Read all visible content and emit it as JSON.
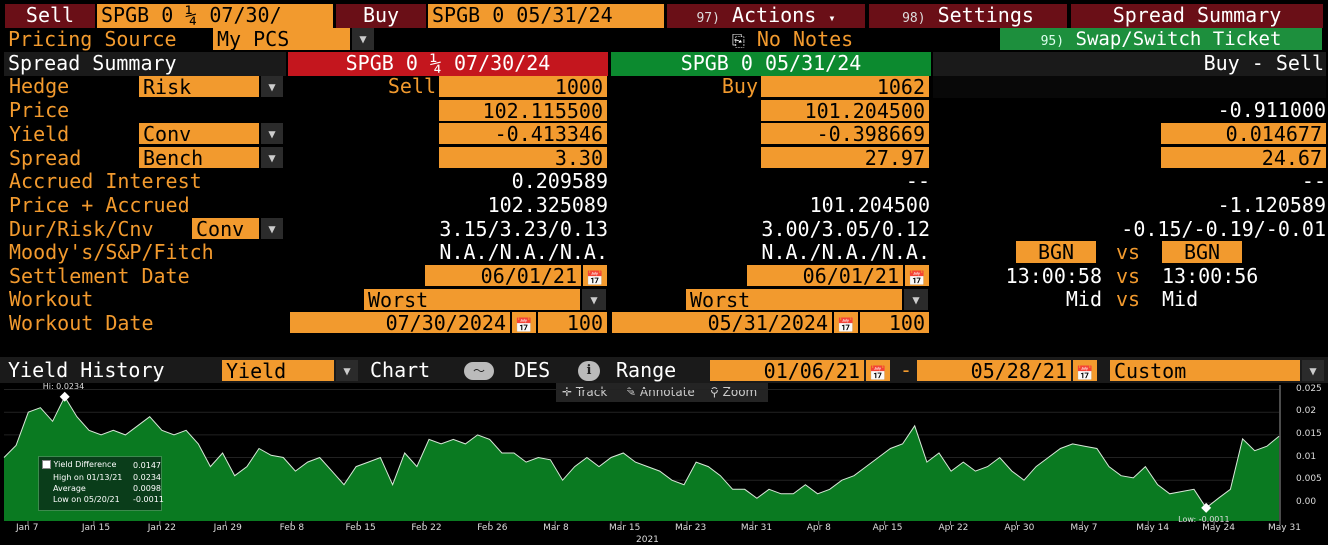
{
  "toolbar": {
    "sell_label": "Sell",
    "sell_security": "SPGB 0 ¼ 07/30/",
    "buy_label": "Buy",
    "buy_security": "SPGB 0 05/31/24",
    "actions_num": "97)",
    "actions_label": "Actions",
    "settings_num": "98)",
    "settings_label": "Settings",
    "spread_summary_label": "Spread Summary"
  },
  "row2": {
    "pricing_source_label": "Pricing Source",
    "pricing_source_value": "My PCS",
    "no_notes_label": "No Notes",
    "swap_num": "95)",
    "swap_label": "Swap/Switch Ticket"
  },
  "header": {
    "title": "Spread Summary",
    "sell_security": "SPGB 0 ¼ 07/30/24",
    "buy_security": "SPGB 0 05/31/24",
    "diff": "Buy - Sell"
  },
  "labels": {
    "hedge": "Hedge",
    "hedge_value": "Risk",
    "price": "Price",
    "yield": "Yield",
    "yield_value": "Conv",
    "spread": "Spread",
    "spread_value": "Bench",
    "accrued": "Accrued Interest",
    "price_accrued": "Price + Accrued",
    "dur": "Dur/Risk/Cnv",
    "dur_value": "Conv",
    "ratings": "Moody's/S&P/Fitch",
    "settlement": "Settlement Date",
    "workout": "Workout",
    "workout_date": "Workout Date"
  },
  "sell": {
    "side_label": "Sell",
    "qty": "1000",
    "price": "102.115500",
    "yield": "-0.413346",
    "spread": "3.30",
    "accrued": "0.209589",
    "price_accrued": "102.325089",
    "dur": "3.15/3.23/0.13",
    "ratings": "N.A./N.A./N.A.",
    "settlement": "06/01/21",
    "workout": "Worst",
    "workout_date": "07/30/2024",
    "workout_price": "100"
  },
  "buy": {
    "side_label": "Buy",
    "qty": "1062",
    "price": "101.204500",
    "yield": "-0.398669",
    "spread": "27.97",
    "accrued": "--",
    "price_accrued": "101.204500",
    "dur": "3.00/3.05/0.12",
    "ratings": "N.A./N.A./N.A.",
    "settlement": "06/01/21",
    "workout": "Worst",
    "workout_date": "05/31/2024",
    "workout_price": "100"
  },
  "diff": {
    "price": "-0.911000",
    "yield": "0.014677",
    "spread": "24.67",
    "accrued": "--",
    "price_accrued": "-1.120589",
    "dur": "-0.15/-0.19/-0.01",
    "bgn_left": "BGN",
    "vs": "vs",
    "bgn_right": "BGN",
    "time_left": "13:00:58",
    "time_right": "13:00:56",
    "mid_left": "Mid",
    "mid_right": "Mid"
  },
  "history": {
    "title": "Yield History",
    "field": "Yield",
    "chart_label": "Chart",
    "des_label": "DES",
    "range_label": "Range",
    "start": "01/06/21",
    "dash": "-",
    "end": "05/28/21",
    "period": "Custom",
    "track": "Track",
    "annotate": "Annotate",
    "zoom": "Zoom"
  },
  "colors": {
    "orange": "#f29a2e",
    "red_header": "#c4161e",
    "green_header": "#0c8a2f",
    "area_fill": "#0a7a21"
  },
  "chart_data": {
    "type": "area",
    "hi_label": "Hi: 0.0234",
    "low_label": "Low: -0.0011",
    "year_label": "2021",
    "ylim": [
      -0.004,
      0.026
    ],
    "y_ticks": [
      "0.025",
      "0.02",
      "0.015",
      "0.01",
      "0.005",
      "0.00"
    ],
    "x_ticks": [
      "Jan 7",
      "Jan 15",
      "Jan 22",
      "Jan 29",
      "Feb 8",
      "Feb 15",
      "Feb 22",
      "Feb 26",
      "Mar 8",
      "Mar 15",
      "Mar 23",
      "Mar 31",
      "Apr 8",
      "Apr 15",
      "Apr 22",
      "Apr 30",
      "May 7",
      "May 14",
      "May 24",
      "May 31"
    ],
    "series": [
      {
        "values": [
          0.01,
          0.0127,
          0.02,
          0.021,
          0.018,
          0.0234,
          0.019,
          0.016,
          0.015,
          0.016,
          0.015,
          0.017,
          0.019,
          0.016,
          0.015,
          0.016,
          0.013,
          0.008,
          0.011,
          0.006,
          0.008,
          0.012,
          0.0105,
          0.01,
          0.007,
          0.009,
          0.01,
          0.007,
          0.004,
          0.008,
          0.009,
          0.01,
          0.004,
          0.011,
          0.008,
          0.014,
          0.013,
          0.014,
          0.013,
          0.015,
          0.014,
          0.011,
          0.011,
          0.009,
          0.01,
          0.0095,
          0.005,
          0.008,
          0.01,
          0.008,
          0.01,
          0.011,
          0.009,
          0.008,
          0.007,
          0.005,
          0.004,
          0.009,
          0.008,
          0.006,
          0.003,
          0.003,
          0.001,
          0.003,
          0.002,
          0.002,
          0.004,
          0.002,
          0.003,
          0.005,
          0.006,
          0.008,
          0.01,
          0.012,
          0.013,
          0.017,
          0.009,
          0.011,
          0.007,
          0.009,
          0.007,
          0.008,
          0.01,
          0.007,
          0.005,
          0.008,
          0.01,
          0.012,
          0.013,
          0.0125,
          0.012,
          0.008,
          0.006,
          0.0055,
          0.008,
          0.004,
          0.002,
          0.0025,
          0.003,
          -0.0011,
          0.001,
          0.003,
          0.0141,
          0.0115,
          0.0125,
          0.0147
        ]
      }
    ],
    "legend": {
      "title": "Yield Difference",
      "title_value": "0.0147",
      "high": "High on 01/13/21",
      "high_value": "0.0234",
      "average": "Average",
      "average_value": "0.0098",
      "low": "Low on 05/20/21",
      "low_value": "-0.0011"
    }
  }
}
